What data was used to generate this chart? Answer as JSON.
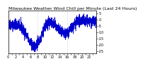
{
  "title": "Milwaukee Weather Wind Chill per Minute (Last 24 Hours)",
  "line_color": "#0000cc",
  "background_color": "#ffffff",
  "plot_bg_color": "#ffffff",
  "border_color": "#000000",
  "grid_color": "#aaaaaa",
  "n_points": 1440,
  "ylim": [
    -27,
    7
  ],
  "y_ticks": [
    5,
    0,
    -5,
    -10,
    -15,
    -20,
    -25
  ],
  "title_fontsize": 4.5,
  "tick_fontsize": 3.5,
  "line_width": 0.4,
  "seed": 42
}
